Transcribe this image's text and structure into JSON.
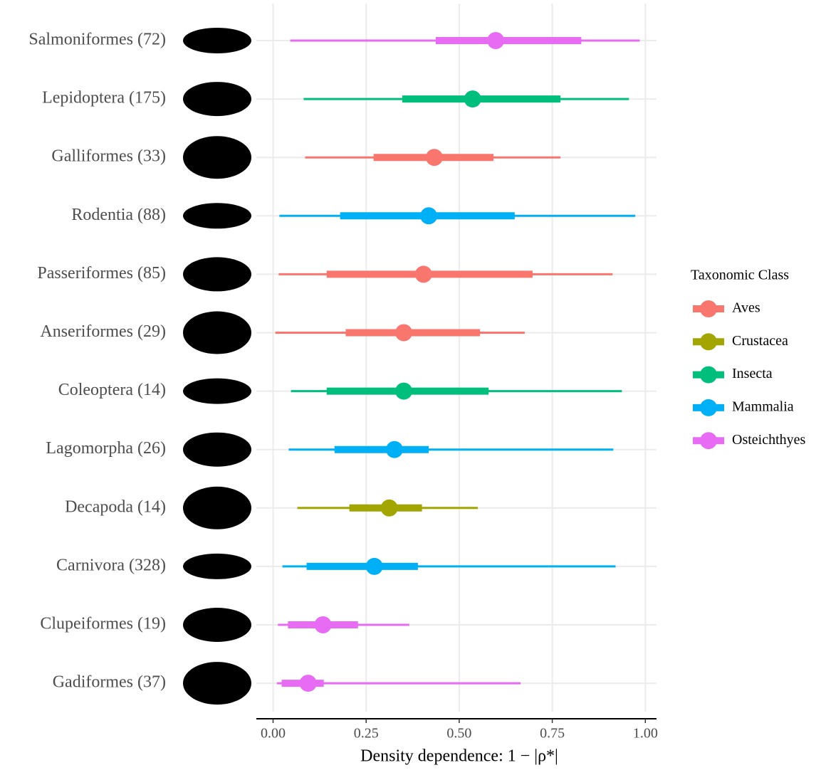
{
  "chart_data": {
    "type": "interval",
    "x_label": "Density dependence: 1 − |ρ*|",
    "legend_title": "Taxonomic Class",
    "legend_position": "right",
    "grid": true,
    "series": [
      {
        "name": "Aves",
        "color": "#F8766D"
      },
      {
        "name": "Crustacea",
        "color": "#A3A500"
      },
      {
        "name": "Insecta",
        "color": "#00BF7D"
      },
      {
        "name": "Mammalia",
        "color": "#00B0F6"
      },
      {
        "name": "Osteichthyes",
        "color": "#E76BF3"
      }
    ],
    "categories": [
      "Salmoniformes (72)",
      "Lepidoptera (175)",
      "Galliformes (33)",
      "Rodentia (88)",
      "Passeriformes (85)",
      "Anseriformes (29)",
      "Coleoptera (14)",
      "Lagomorpha (26)",
      "Decapoda (14)",
      "Carnivora (328)",
      "Clupeiformes (19)",
      "Gadiformes (37)"
    ],
    "group": [
      "Osteichthyes",
      "Insecta",
      "Aves",
      "Mammalia",
      "Aves",
      "Aves",
      "Insecta",
      "Mammalia",
      "Crustacea",
      "Mammalia",
      "Osteichthyes",
      "Osteichthyes"
    ],
    "estimate": [
      0.598,
      0.536,
      0.433,
      0.418,
      0.404,
      0.351,
      0.351,
      0.326,
      0.312,
      0.272,
      0.134,
      0.094
    ],
    "inner_low": [
      0.437,
      0.347,
      0.27,
      0.18,
      0.144,
      0.195,
      0.144,
      0.165,
      0.205,
      0.09,
      0.04,
      0.023
    ],
    "inner_high": [
      0.828,
      0.772,
      0.592,
      0.649,
      0.697,
      0.556,
      0.579,
      0.418,
      0.4,
      0.389,
      0.228,
      0.136
    ],
    "outer_low": [
      0.046,
      0.082,
      0.086,
      0.017,
      0.015,
      0.006,
      0.048,
      0.042,
      0.065,
      0.025,
      0.013,
      0.01
    ],
    "outer_high": [
      0.985,
      0.956,
      0.772,
      0.973,
      0.912,
      0.676,
      0.937,
      0.914,
      0.55,
      0.92,
      0.366,
      0.665
    ],
    "xlim": [
      -0.045,
      1.03
    ],
    "xticks": [
      {
        "value": 0,
        "label": "0.00"
      },
      {
        "value": 0.25,
        "label": "0.25"
      },
      {
        "value": 0.5,
        "label": "0.50"
      },
      {
        "value": 0.75,
        "label": "0.75"
      },
      {
        "value": 1,
        "label": "1.00"
      }
    ]
  }
}
